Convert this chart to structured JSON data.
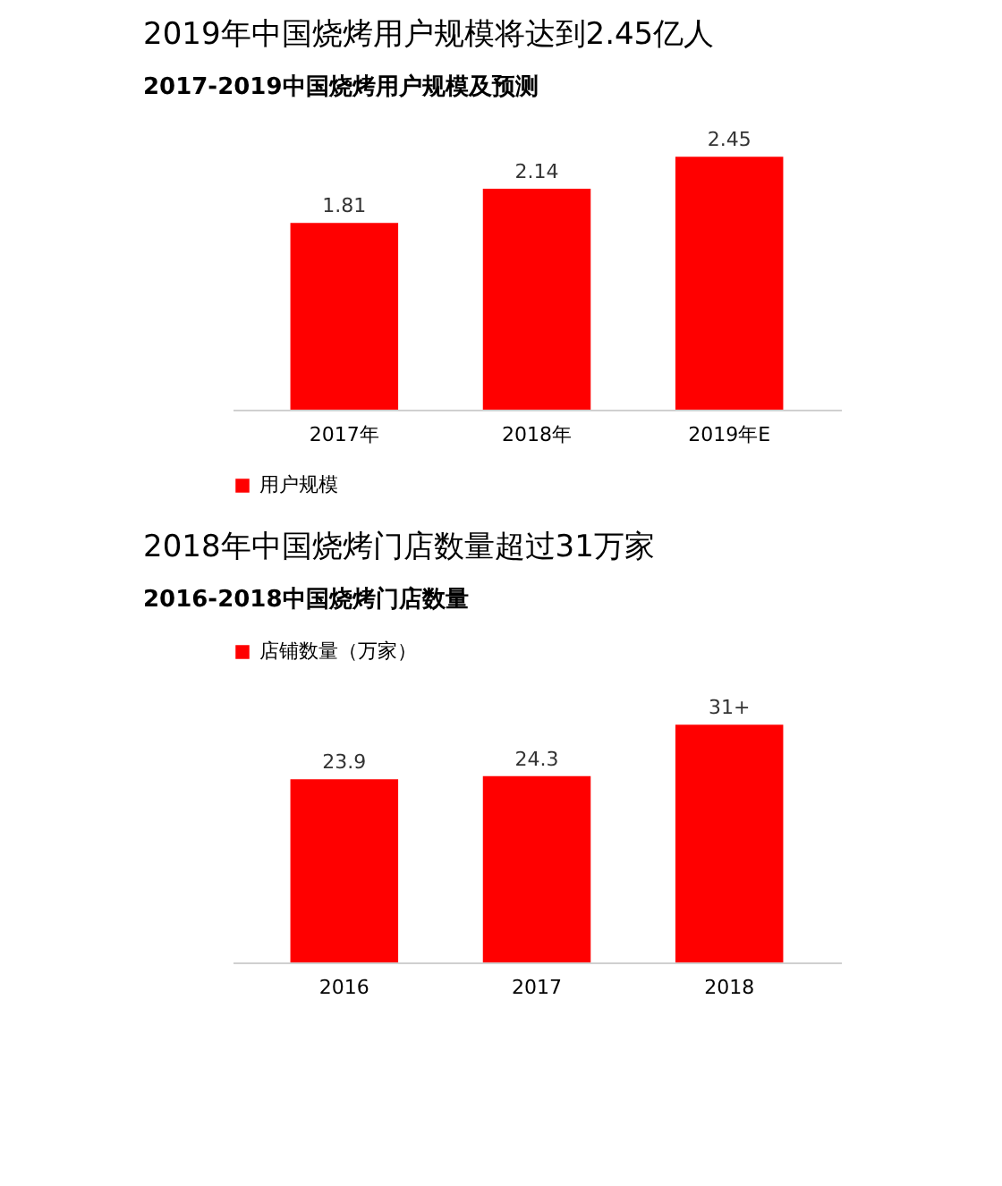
{
  "chart_data": [
    {
      "type": "bar",
      "title": "2019年中国烧烤用户规模将达到2.45亿人",
      "subtitle": "2017-2019中国烧烤用户规模及预测",
      "categories": [
        "2017年",
        "2018年",
        "2019年E"
      ],
      "series": [
        {
          "name": "用户规模",
          "color": "#ff0000",
          "values": [
            1.81,
            2.14,
            2.45
          ]
        }
      ],
      "data_labels": true,
      "legend": "bottom"
    },
    {
      "type": "bar",
      "title": "2018年中国烧烤门店数量超过31万家",
      "subtitle": "2016-2018中国烧烤门店数量",
      "categories": [
        "2016",
        "2017",
        "2018"
      ],
      "series": [
        {
          "name": "店铺数量（万家）",
          "color": "#ff0000",
          "values": [
            23.9,
            24.3,
            31
          ],
          "value_labels": [
            "23.9",
            "24.3",
            "31+"
          ]
        }
      ],
      "legend": "top"
    }
  ]
}
